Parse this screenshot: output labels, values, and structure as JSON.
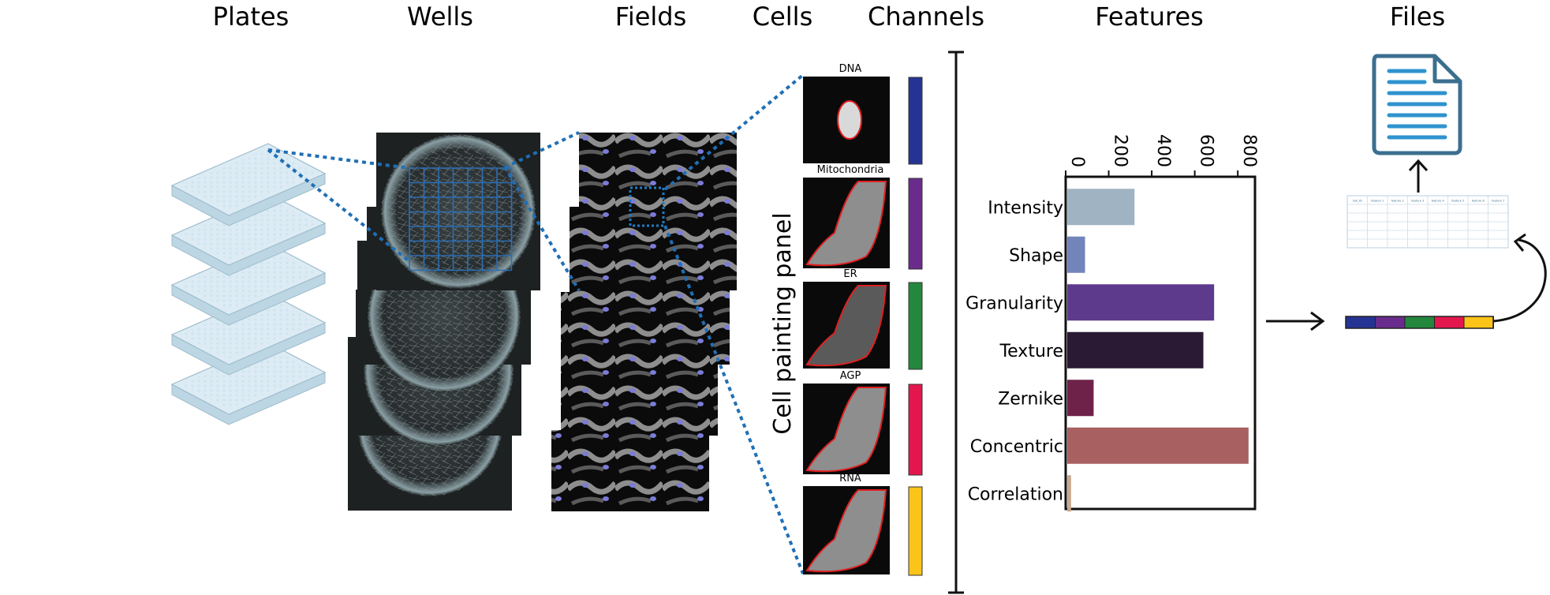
{
  "headers": {
    "plates": "Plates",
    "wells": "Wells",
    "fields": "Fields",
    "cells": "Cells",
    "channels": "Channels",
    "features": "Features",
    "files": "Files"
  },
  "channels": [
    {
      "name": "DNA",
      "color": "#253494"
    },
    {
      "name": "Mitochondria",
      "color": "#6a2c8c"
    },
    {
      "name": "ER",
      "color": "#23883d"
    },
    {
      "name": "AGP",
      "color": "#e3174e"
    },
    {
      "name": "RNA",
      "color": "#fcc419"
    }
  ],
  "panel_label": "Cell painting panel",
  "table_headers": [
    "Cell_ID",
    "feature 1",
    "feature 2",
    "feature 3",
    "feature 4",
    "feature 5",
    "feature 6",
    "feature 7"
  ],
  "chart_data": {
    "type": "bar",
    "orientation": "horizontal",
    "categories": [
      "Intensity",
      "Shape",
      "Granularity",
      "Texture",
      "Zernike",
      "Concentric",
      "Correlation"
    ],
    "values": [
      320,
      90,
      690,
      640,
      130,
      850,
      25
    ],
    "colors": [
      "#9fb3c3",
      "#7384bb",
      "#5e3a8c",
      "#2a1a33",
      "#6e2249",
      "#a86060",
      "#c9a88f"
    ],
    "ticks": [
      "0",
      "200",
      "400",
      "600",
      "800"
    ],
    "tick_values": [
      0,
      200,
      400,
      600,
      800
    ],
    "xlim": [
      0,
      880
    ],
    "grid": false
  }
}
